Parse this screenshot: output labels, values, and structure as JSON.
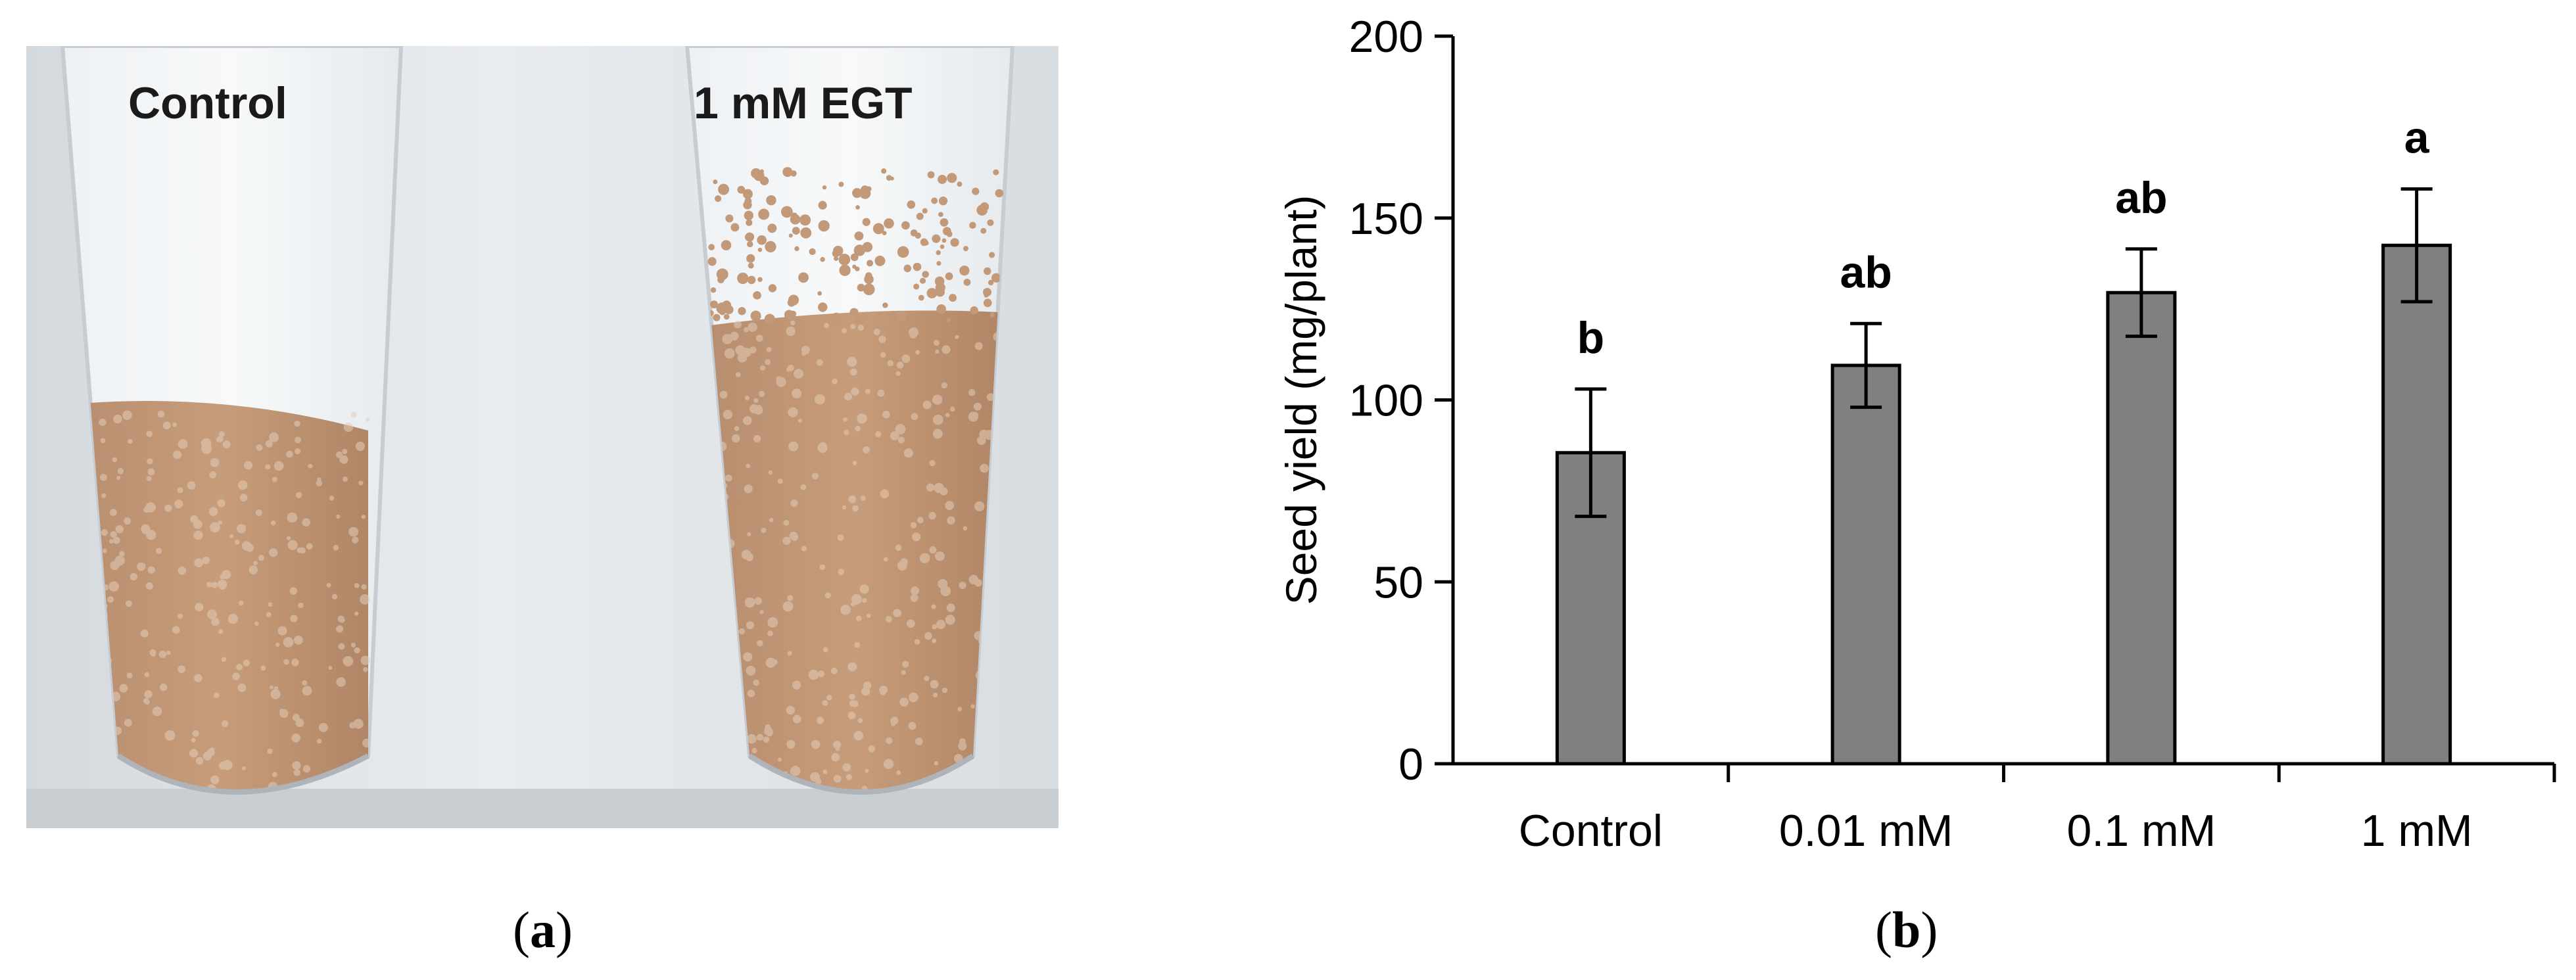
{
  "photo": {
    "label_left": "Control",
    "label_right": "1 mM EGT"
  },
  "captions": {
    "a_open": "(",
    "a_letter": "a",
    "a_close": ")",
    "b_open": "(",
    "b_letter": "b",
    "b_close": ")"
  },
  "chart_data": {
    "type": "bar",
    "categories": [
      "Control",
      "0.01 mM",
      "0.1 mM",
      "1 mM"
    ],
    "values": [
      85.5,
      109.5,
      129.5,
      142.5
    ],
    "errors": [
      17.5,
      11.5,
      12,
      15.5
    ],
    "significance": [
      "b",
      "ab",
      "ab",
      "a"
    ],
    "xlabel": "",
    "ylabel": "Seed yield (mg/plant)",
    "ylim": [
      0,
      200
    ],
    "yticks": [
      0,
      50,
      100,
      150,
      200
    ],
    "grid": false,
    "bar_color": "#808080"
  }
}
